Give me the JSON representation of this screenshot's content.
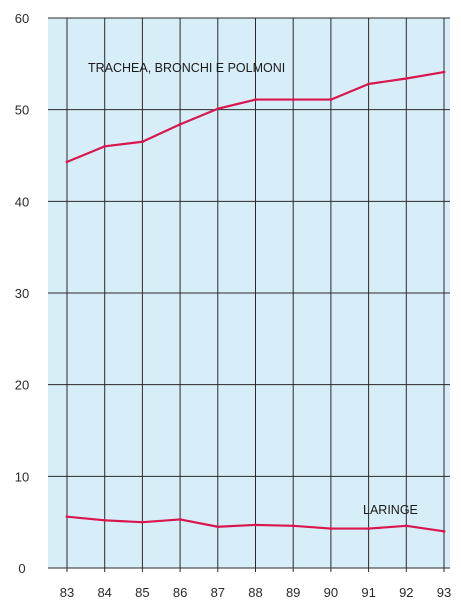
{
  "chart_data": {
    "type": "line",
    "x": [
      "83",
      "84",
      "85",
      "86",
      "87",
      "88",
      "89",
      "90",
      "91",
      "92",
      "93"
    ],
    "ylim": [
      0,
      60
    ],
    "yticks": [
      0,
      10,
      20,
      30,
      40,
      50,
      60
    ],
    "grid": true,
    "series": [
      {
        "name": "TRACHEA, BRONCHI E POLMONI",
        "values": [
          44.3,
          46.0,
          46.5,
          48.4,
          50.1,
          51.1,
          51.1,
          51.1,
          52.8,
          53.4,
          54.1
        ]
      },
      {
        "name": "LARINGE",
        "values": [
          5.6,
          5.2,
          5.0,
          5.3,
          4.5,
          4.7,
          4.6,
          4.3,
          4.3,
          4.6,
          4.0
        ]
      }
    ],
    "colors": {
      "background": "#d7eef8",
      "line": "#d8174f",
      "grid": "#2a2a2a"
    }
  }
}
